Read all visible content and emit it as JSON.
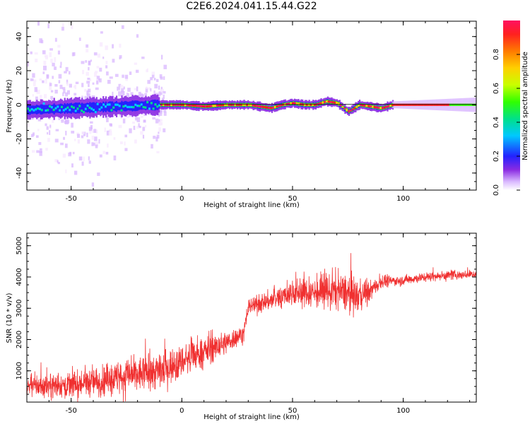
{
  "title": "C2E6.2024.041.15.44.G22",
  "colors": {
    "snr_line": "#f03030",
    "frame": "#000000",
    "colormap": [
      "#f7e8ff",
      "#d9b8ff",
      "#8a2be2",
      "#2222ff",
      "#00c8ff",
      "#00e08a",
      "#30ff00",
      "#c8ff00",
      "#ffd000",
      "#ff7a00",
      "#ff2020",
      "#ff1060"
    ]
  },
  "chart_data": [
    {
      "type": "heatmap",
      "name": "spectrogram",
      "xlabel": "Height of straight line (km)",
      "ylabel": "Frequency (Hz)",
      "xlim": [
        -70,
        133
      ],
      "ylim": [
        -50,
        49
      ],
      "xticks": [
        "-50",
        "0",
        "50",
        "100"
      ],
      "yticks": [
        "-40",
        "-20",
        "0",
        "20",
        "40"
      ],
      "ridge_frequency": {
        "x": [
          -70,
          -50,
          -30,
          -10,
          0,
          10,
          20,
          30,
          40,
          45,
          50,
          55,
          60,
          65,
          70,
          75,
          80,
          85,
          90,
          95,
          110,
          133
        ],
        "y": [
          -3,
          -2,
          -1,
          0,
          0,
          -1,
          0,
          0,
          -2,
          0,
          1,
          0,
          0,
          2,
          1,
          -4,
          0,
          -1,
          -2,
          0,
          0,
          0
        ]
      },
      "colorbar": {
        "label": "Normalized spectral amplitude",
        "range": [
          0,
          1
        ],
        "ticks": [
          "0.0",
          "0.2",
          "0.4",
          "0.6",
          "0.8"
        ]
      }
    },
    {
      "type": "line",
      "name": "snr",
      "xlabel": "Height of straight line (km)",
      "ylabel": "SNR (10 * v/v)",
      "xlim": [
        -70,
        133
      ],
      "ylim": [
        0,
        5400
      ],
      "xticks": [
        "-50",
        "0",
        "50",
        "100"
      ],
      "yticks": [
        "1000",
        "2000",
        "3000",
        "4000",
        "5000"
      ],
      "envelope": {
        "x": [
          -70,
          -50,
          -30,
          -10,
          0,
          10,
          20,
          28,
          29,
          30,
          40,
          50,
          60,
          70,
          80,
          85,
          90,
          100,
          110,
          120,
          133
        ],
        "mean": [
          500,
          550,
          750,
          1000,
          1300,
          1600,
          1900,
          2200,
          2600,
          3050,
          3250,
          3500,
          3500,
          3550,
          3400,
          3550,
          3850,
          3900,
          4000,
          4050,
          4100
        ],
        "spread": [
          400,
          450,
          550,
          650,
          550,
          500,
          400,
          300,
          300,
          300,
          350,
          450,
          550,
          650,
          550,
          350,
          200,
          180,
          160,
          160,
          150
        ]
      }
    }
  ]
}
